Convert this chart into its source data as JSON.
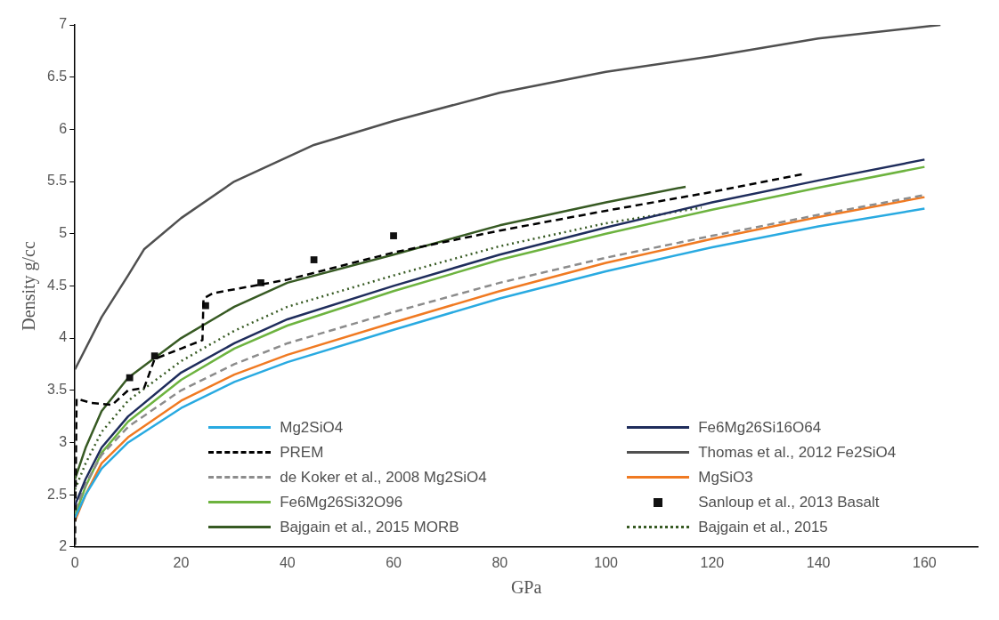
{
  "chart_data": {
    "type": "line",
    "xlabel": "GPa",
    "ylabel": "Density g/cc",
    "xlim": [
      0,
      170
    ],
    "xticks": [
      0,
      20,
      40,
      60,
      80,
      100,
      120,
      140,
      160
    ],
    "ylim": [
      2,
      7
    ],
    "yticks": [
      2,
      2.5,
      3,
      3.5,
      4,
      4.5,
      5,
      5.5,
      6,
      6.5,
      7
    ],
    "grid": false,
    "legend": "bottom",
    "marker": "none",
    "series": [
      {
        "name": "Mg2SiO4",
        "color": "#29aae1",
        "line_style": "solid",
        "x": [
          0,
          2,
          5,
          10,
          20,
          30,
          40,
          60,
          80,
          100,
          120,
          140,
          160
        ],
        "values": [
          2.28,
          2.5,
          2.75,
          3.0,
          3.33,
          3.58,
          3.77,
          4.08,
          4.38,
          4.64,
          4.87,
          5.07,
          5.24
        ]
      },
      {
        "name": "Fe6Mg26Si16O64",
        "color": "#1f2d5c",
        "line_style": "solid",
        "x": [
          0,
          2,
          5,
          10,
          20,
          30,
          40,
          60,
          80,
          100,
          120,
          140,
          160
        ],
        "values": [
          2.4,
          2.65,
          2.95,
          3.25,
          3.67,
          3.95,
          4.18,
          4.5,
          4.8,
          5.06,
          5.3,
          5.51,
          5.71
        ]
      },
      {
        "name": "PREM",
        "color": "#000000",
        "line_style": "dashed",
        "x": [
          0,
          0.3,
          3,
          7,
          10,
          13,
          15,
          20,
          24,
          24.2,
          26,
          40,
          60,
          80,
          100,
          120,
          137
        ],
        "values": [
          2.02,
          3.42,
          3.38,
          3.36,
          3.5,
          3.52,
          3.8,
          3.9,
          3.98,
          4.38,
          4.43,
          4.56,
          4.82,
          5.03,
          5.22,
          5.4,
          5.57
        ]
      },
      {
        "name": "Thomas et al., 2012 Fe2SiO4",
        "color": "#505050",
        "line_style": "solid",
        "x": [
          0,
          5,
          10,
          13,
          20,
          30,
          45,
          60,
          80,
          90,
          100,
          120,
          140,
          163
        ],
        "values": [
          3.7,
          4.2,
          4.6,
          4.85,
          5.15,
          5.5,
          5.85,
          6.08,
          6.35,
          6.45,
          6.55,
          6.7,
          6.87,
          7.0
        ]
      },
      {
        "name": "de Koker et al., 2008 Mg2SiO4",
        "color": "#8c8c8c",
        "line_style": "dashed",
        "x": [
          0,
          2,
          5,
          10,
          20,
          30,
          40,
          60,
          80,
          100,
          120,
          140,
          160
        ],
        "values": [
          2.35,
          2.6,
          2.88,
          3.15,
          3.5,
          3.75,
          3.95,
          4.25,
          4.53,
          4.77,
          4.98,
          5.18,
          5.37
        ]
      },
      {
        "name": "MgSiO3",
        "color": "#f07a22",
        "line_style": "solid",
        "x": [
          0,
          2,
          5,
          10,
          20,
          30,
          40,
          60,
          80,
          100,
          120,
          140,
          160
        ],
        "values": [
          2.25,
          2.5,
          2.8,
          3.05,
          3.4,
          3.65,
          3.84,
          4.15,
          4.45,
          4.72,
          4.95,
          5.16,
          5.35
        ]
      },
      {
        "name": "Fe6Mg26Si32O96",
        "color": "#6db33f",
        "line_style": "solid",
        "x": [
          0,
          2,
          5,
          10,
          20,
          30,
          40,
          60,
          80,
          100,
          120,
          140,
          160
        ],
        "values": [
          2.3,
          2.58,
          2.9,
          3.2,
          3.6,
          3.9,
          4.12,
          4.45,
          4.75,
          5.0,
          5.23,
          5.44,
          5.64
        ]
      },
      {
        "name": "Sanloup et al., 2013 Basalt",
        "type": "scatter",
        "color": "#111111",
        "marker": "square",
        "x": [
          10.3,
          15,
          24.6,
          35,
          45,
          60
        ],
        "values": [
          3.62,
          3.83,
          4.31,
          4.53,
          4.75,
          4.98
        ]
      },
      {
        "name": "Bajgain et al., 2015 MORB",
        "color": "#375a23",
        "line_style": "solid",
        "x": [
          0,
          2,
          5,
          10,
          20,
          30,
          40,
          60,
          80,
          100,
          115
        ],
        "values": [
          2.65,
          2.95,
          3.3,
          3.62,
          4.0,
          4.3,
          4.53,
          4.8,
          5.08,
          5.3,
          5.45
        ]
      },
      {
        "name": "Bajgain et al., 2015",
        "color": "#375a23",
        "line_style": "dotted",
        "x": [
          0,
          2,
          5,
          10,
          20,
          30,
          40,
          60,
          80,
          100,
          118
        ],
        "values": [
          2.55,
          2.8,
          3.1,
          3.4,
          3.78,
          4.07,
          4.3,
          4.6,
          4.88,
          5.1,
          5.25
        ]
      }
    ]
  }
}
